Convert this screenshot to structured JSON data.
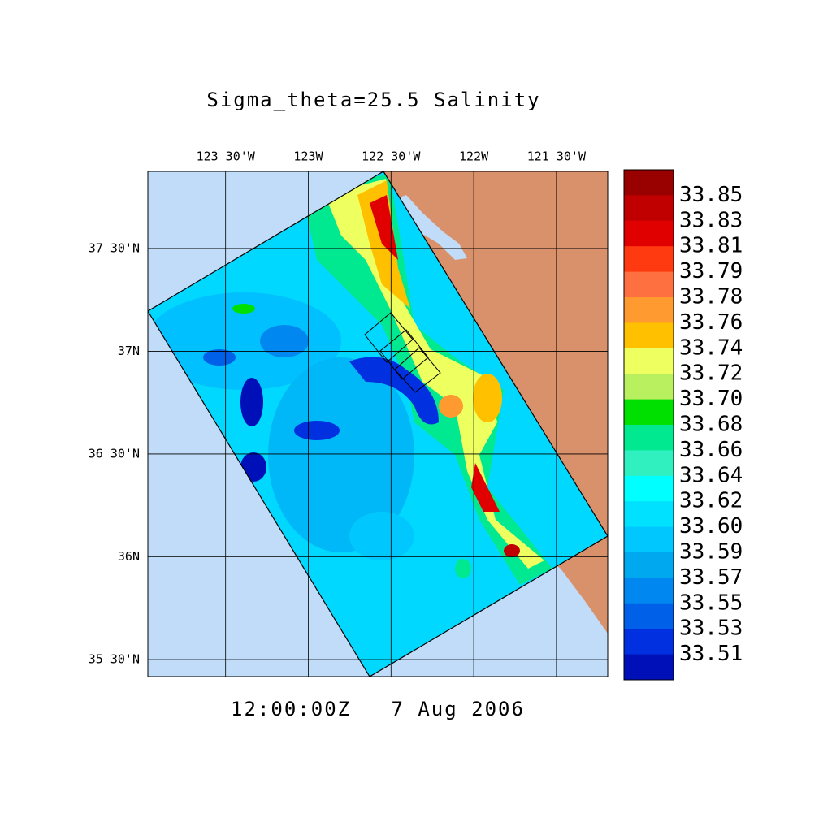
{
  "title": "Sigma_theta=25.5 Salinity",
  "timestamp": "12:00:00Z   7 Aug 2006",
  "map": {
    "xlim": [
      -123.97,
      -121.19
    ],
    "ylim": [
      35.417,
      37.875
    ],
    "xticks": [
      {
        "value": -123.5,
        "label": "123 30'W"
      },
      {
        "value": -123,
        "label": "123W"
      },
      {
        "value": -122.5,
        "label": "122 30'W"
      },
      {
        "value": -122,
        "label": "122W"
      },
      {
        "value": -121.5,
        "label": "121 30'W"
      }
    ],
    "yticks": [
      {
        "value": 37.5,
        "label": "37 30'N"
      },
      {
        "value": 37,
        "label": "37N"
      },
      {
        "value": 36.5,
        "label": "36 30'N"
      },
      {
        "value": 36,
        "label": "36N"
      },
      {
        "value": 35.5,
        "label": "35 30'N"
      }
    ]
  },
  "colorbar": {
    "ticks": [
      33.85,
      33.83,
      33.81,
      33.79,
      33.78,
      33.76,
      33.74,
      33.72,
      {
        "value": 33.7,
        "label": "33.70"
      },
      33.68,
      33.66,
      33.64,
      33.62,
      {
        "value": 33.6,
        "label": "33.60"
      },
      33.59,
      33.57,
      33.55,
      33.53,
      33.51
    ],
    "colors": [
      "#990000",
      "#c00000",
      "#e00000",
      "#ff3a10",
      "#ff7040",
      "#ff9a30",
      "#ffc000",
      "#eeff60",
      "#b8f060",
      "#00e000",
      "#00e890",
      "#30f0c0",
      "#00ffff",
      "#00e0ff",
      "#00c8ff",
      "#00a8f0",
      "#0088f0",
      "#0060e8",
      "#0030e0",
      "#0010b8"
    ]
  }
}
